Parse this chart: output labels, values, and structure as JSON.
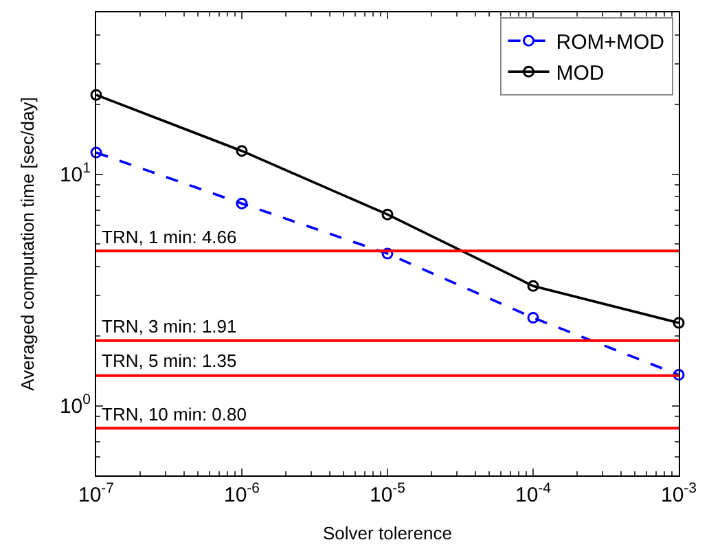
{
  "chart_data": {
    "type": "line",
    "xlabel": "Solver tolerence",
    "ylabel": "Averaged computation time [sec/day]",
    "x": [
      1e-07,
      1e-06,
      1e-05,
      0.0001,
      0.001
    ],
    "series": [
      {
        "name": "ROM+MOD",
        "color": "#0000ff",
        "line_style": "dashed",
        "values": [
          12.4,
          7.47,
          4.54,
          2.4,
          1.36
        ]
      },
      {
        "name": "MOD",
        "color": "#000000",
        "line_style": "solid",
        "values": [
          22.0,
          12.6,
          6.7,
          3.29,
          2.28
        ]
      }
    ],
    "ref_lines": [
      {
        "axis": "y",
        "value": 4.66,
        "label": "TRN, 1 min: 4.66",
        "color": "#ff0000"
      },
      {
        "axis": "y",
        "value": 1.91,
        "label": "TRN, 3 min: 1.91",
        "color": "#ff0000"
      },
      {
        "axis": "y",
        "value": 1.35,
        "label": "TRN, 5 min: 1.35",
        "color": "#ff0000"
      },
      {
        "axis": "y",
        "value": 0.8,
        "label": "TRN, 10 min: 0.80",
        "color": "#ff0000"
      }
    ],
    "log": "xy",
    "marker": "circle",
    "legend": "top right",
    "xlim": [
      1e-07,
      0.001
    ],
    "ylim": [
      0.5,
      50
    ],
    "xticks": [
      {
        "value": 1e-07,
        "label": "10$^{-7}$"
      },
      {
        "value": 1e-06,
        "label": "10$^{-6}$"
      },
      {
        "value": 1e-05,
        "label": "10$^{-5}$"
      },
      {
        "value": 0.0001,
        "label": "10$^{-4}$"
      },
      {
        "value": 0.001,
        "label": "10$^{-3}$"
      }
    ],
    "yticks": [
      {
        "value": 1,
        "label": "10$^{0}$"
      },
      {
        "value": 10,
        "label": "10$^{1}$"
      }
    ]
  }
}
